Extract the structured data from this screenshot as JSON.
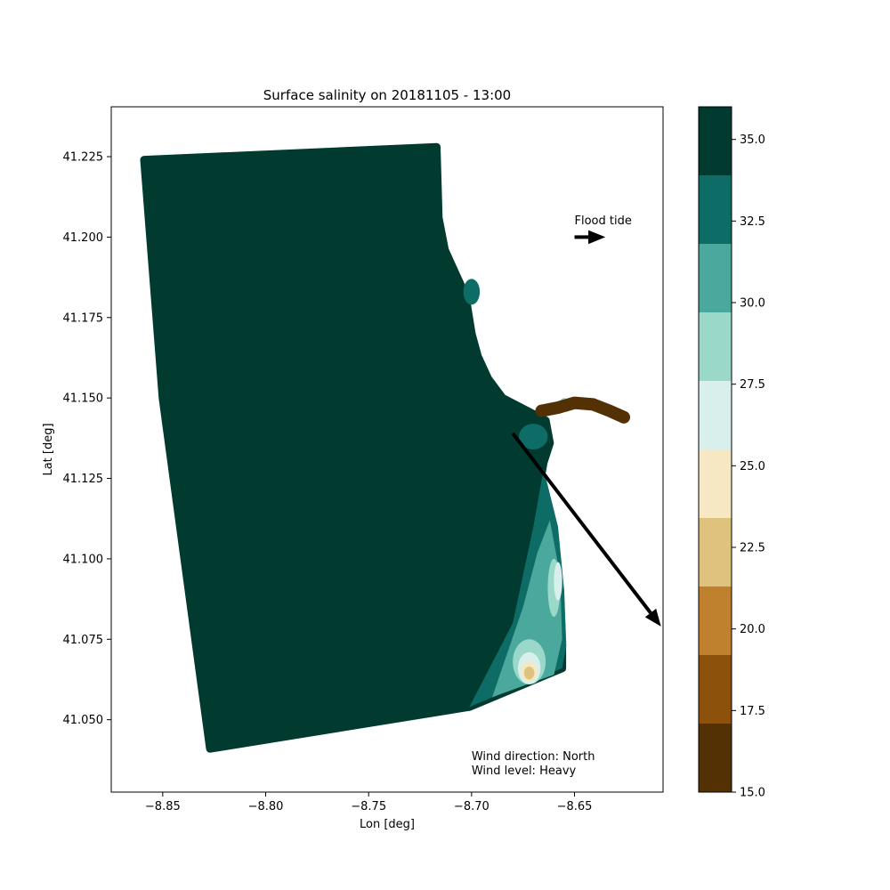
{
  "chart_data": {
    "type": "scatter",
    "title": "Surface salinity on 20181105 - 13:00",
    "xlabel": "Lon [deg]",
    "ylabel": "Lat [deg]",
    "xlim": [
      -8.875,
      -8.607
    ],
    "ylim": [
      41.0275,
      41.2405
    ],
    "xticks": [
      -8.85,
      -8.8,
      -8.75,
      -8.7,
      -8.65
    ],
    "xtick_labels": [
      "−8.85",
      "−8.80",
      "−8.75",
      "−8.70",
      "−8.65"
    ],
    "yticks": [
      41.05,
      41.075,
      41.1,
      41.125,
      41.15,
      41.175,
      41.2,
      41.225
    ],
    "ytick_labels": [
      "41.050",
      "41.075",
      "41.100",
      "41.125",
      "41.150",
      "41.175",
      "41.200",
      "41.225"
    ],
    "grid": false,
    "domain_outline": [
      [
        -8.859,
        41.224
      ],
      [
        -8.717,
        41.228
      ],
      [
        -8.716,
        41.206
      ],
      [
        -8.713,
        41.196
      ],
      [
        -8.708,
        41.189
      ],
      [
        -8.703,
        41.182
      ],
      [
        -8.7,
        41.17
      ],
      [
        -8.697,
        41.163
      ],
      [
        -8.692,
        41.156
      ],
      [
        -8.685,
        41.15
      ],
      [
        -8.673,
        41.146
      ],
      [
        -8.664,
        41.143
      ],
      [
        -8.662,
        41.136
      ],
      [
        -8.665,
        41.13
      ],
      [
        -8.667,
        41.123
      ],
      [
        -8.664,
        41.117
      ],
      [
        -8.661,
        41.108
      ],
      [
        -8.659,
        41.1
      ],
      [
        -8.657,
        41.09
      ],
      [
        -8.657,
        41.08
      ],
      [
        -8.656,
        41.073
      ],
      [
        -8.656,
        41.066
      ],
      [
        -8.701,
        41.054
      ],
      [
        -8.827,
        41.041
      ],
      [
        -8.85,
        41.15
      ]
    ],
    "river_channel": [
      [
        -8.666,
        41.146
      ],
      [
        -8.658,
        41.147
      ],
      [
        -8.65,
        41.1485
      ],
      [
        -8.641,
        41.148
      ],
      [
        -8.633,
        41.146
      ],
      [
        -8.626,
        41.144
      ]
    ],
    "salinity_patches": [
      {
        "type": "polygon",
        "salinity": 33.0,
        "points": [
          [
            -8.665,
            41.128
          ],
          [
            -8.658,
            41.11
          ],
          [
            -8.655,
            41.09
          ],
          [
            -8.654,
            41.073
          ],
          [
            -8.656,
            41.066
          ],
          [
            -8.701,
            41.054
          ],
          [
            -8.68,
            41.08
          ],
          [
            -8.67,
            41.11
          ]
        ]
      },
      {
        "type": "polygon",
        "salinity": 30.5,
        "points": [
          [
            -8.662,
            41.112
          ],
          [
            -8.657,
            41.095
          ],
          [
            -8.656,
            41.075
          ],
          [
            -8.66,
            41.064
          ],
          [
            -8.69,
            41.057
          ],
          [
            -8.675,
            41.085
          ],
          [
            -8.668,
            41.102
          ]
        ]
      },
      {
        "type": "ellipse",
        "salinity": 29.0,
        "lon": -8.66,
        "lat": 41.091,
        "rx_deg": 0.003,
        "ry_deg": 0.009
      },
      {
        "type": "ellipse",
        "salinity": 26.0,
        "lon": -8.658,
        "lat": 41.093,
        "rx_deg": 0.002,
        "ry_deg": 0.006
      },
      {
        "type": "ellipse",
        "salinity": 29.0,
        "lon": -8.672,
        "lat": 41.068,
        "rx_deg": 0.008,
        "ry_deg": 0.007
      },
      {
        "type": "ellipse",
        "salinity": 26.0,
        "lon": -8.672,
        "lat": 41.066,
        "rx_deg": 0.0055,
        "ry_deg": 0.005
      },
      {
        "type": "ellipse",
        "salinity": 24.0,
        "lon": -8.672,
        "lat": 41.065,
        "rx_deg": 0.004,
        "ry_deg": 0.003
      },
      {
        "type": "ellipse",
        "salinity": 22.0,
        "lon": -8.672,
        "lat": 41.0645,
        "rx_deg": 0.0025,
        "ry_deg": 0.002
      },
      {
        "type": "ellipse",
        "salinity": 33.0,
        "lon": -8.7,
        "lat": 41.183,
        "rx_deg": 0.004,
        "ry_deg": 0.004
      },
      {
        "type": "ellipse",
        "salinity": 33.0,
        "lon": -8.67,
        "lat": 41.138,
        "rx_deg": 0.007,
        "ry_deg": 0.004
      },
      {
        "type": "ellipse",
        "salinity": 29.0,
        "lon": -8.655,
        "lat": 41.148,
        "rx_deg": 0.0025,
        "ry_deg": 0.002
      },
      {
        "type": "ellipse",
        "salinity": 26.0,
        "lon": -8.652,
        "lat": 41.148,
        "rx_deg": 0.002,
        "ry_deg": 0.002
      }
    ],
    "annotations": {
      "flood_tide": {
        "text": "Flood tide",
        "lon": -8.65,
        "lat": 41.204
      },
      "flood_arrow": {
        "from": [
          -8.65,
          41.2
        ],
        "to": [
          -8.635,
          41.2
        ]
      },
      "wind_arrow": {
        "from": [
          -8.68,
          41.139
        ],
        "to": [
          -8.608,
          41.079
        ]
      },
      "wind_direction": {
        "text": "Wind direction: North",
        "lon": -8.7,
        "lat": 41.0375
      },
      "wind_level": {
        "text": "Wind level: Heavy",
        "lon": -8.7,
        "lat": 41.033
      }
    }
  },
  "colorbar": {
    "range": [
      15.0,
      36.0
    ],
    "ticks": [
      15.0,
      17.5,
      20.0,
      22.5,
      25.0,
      27.5,
      30.0,
      32.5,
      35.0
    ],
    "tick_labels": [
      "15.0",
      "17.5",
      "20.0",
      "22.5",
      "25.0",
      "27.5",
      "30.0",
      "32.5",
      "35.0"
    ],
    "colors": [
      "#543005",
      "#8c510a",
      "#bf812d",
      "#dfc27d",
      "#f6e8c3",
      "#d8efec",
      "#9ad8ca",
      "#4aa99c",
      "#0d6c66",
      "#013b30"
    ]
  },
  "colors": {
    "sea": "#013b30",
    "river": "#543005"
  }
}
